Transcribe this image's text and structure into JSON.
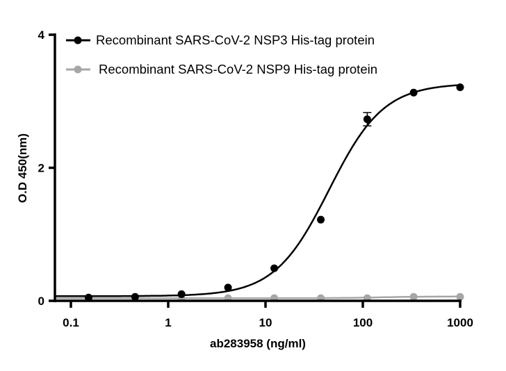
{
  "chart_data": {
    "type": "scatter",
    "title": "",
    "xlabel": "ab283958 (ng/ml)",
    "ylabel": "O.D 450(nm)",
    "xscale": "log",
    "xlim": [
      0.067,
      1000
    ],
    "ylim": [
      0,
      4
    ],
    "xticks": [
      "0.1",
      "1",
      "10",
      "100",
      "1000"
    ],
    "xtick_values": [
      0.1,
      1,
      10,
      100,
      1000
    ],
    "yticks": [
      "0",
      "2",
      "4"
    ],
    "ytick_values": [
      0,
      2,
      4
    ],
    "grid": false,
    "legend_position": "top",
    "x": [
      0.152,
      0.457,
      1.37,
      4.12,
      12.3,
      37,
      111,
      333,
      1000
    ],
    "series": [
      {
        "name": "Recombinant SARS-CoV-2 NSP3 His-tag protein",
        "color": "#000000",
        "values": [
          0.05,
          0.06,
          0.1,
          0.2,
          0.49,
          1.22,
          2.73,
          3.13,
          3.21
        ],
        "errors": [
          0,
          0,
          0,
          0,
          0,
          0,
          0.1,
          0,
          0
        ]
      },
      {
        "name": "Recombinant SARS-CoV-2 NSP9 His-tag protein",
        "color": "#a6a6a8",
        "values": [
          0.04,
          0.05,
          0.04,
          0.04,
          0.04,
          0.04,
          0.04,
          0.06,
          0.06
        ],
        "errors": [
          0,
          0,
          0,
          0,
          0,
          0,
          0,
          0,
          0
        ]
      }
    ]
  }
}
